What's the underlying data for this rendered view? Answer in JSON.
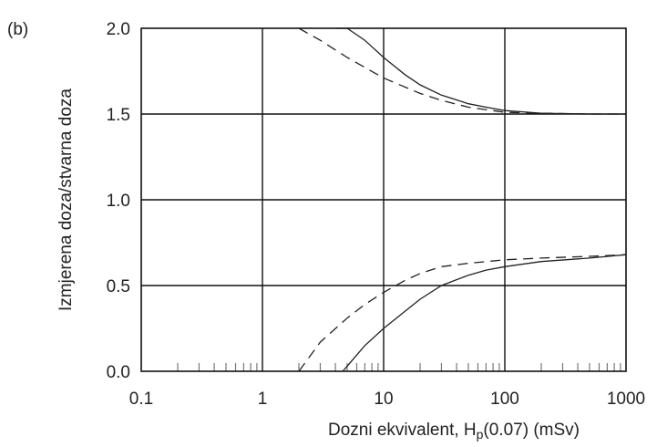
{
  "panel_label": "(b)",
  "chart_data": {
    "type": "line",
    "title": "",
    "xlabel_main": "Dozni ekvivalent, H",
    "xlabel_sub": "p",
    "xlabel_tail": "(0.07) (mSv)",
    "ylabel": "Izmjerena doza/stvarna doza",
    "x_scale": "log",
    "xlim": [
      0.1,
      1000
    ],
    "ylim": [
      0.0,
      2.0
    ],
    "x_ticks": [
      0.1,
      1,
      10,
      100,
      1000
    ],
    "x_tick_labels": [
      "0.1",
      "1",
      "10",
      "100",
      "1000"
    ],
    "y_ticks": [
      0.0,
      0.5,
      1.0,
      1.5,
      2.0
    ],
    "y_tick_labels": [
      "0.0",
      "0.5",
      "1.0",
      "1.5",
      "2.0"
    ],
    "grid": true,
    "series": [
      {
        "style": "solid",
        "color": "#222222",
        "x": [
          4.0,
          5,
          7,
          10,
          15,
          20,
          30,
          50,
          70,
          100,
          200,
          500,
          1000
        ],
        "y": [
          2.0,
          2.0,
          1.93,
          1.83,
          1.73,
          1.67,
          1.61,
          1.56,
          1.54,
          1.52,
          1.505,
          1.5,
          1.5
        ]
      },
      {
        "style": "dashed",
        "color": "#222222",
        "x": [
          2.0,
          3,
          5,
          10,
          20,
          30,
          50,
          100,
          200,
          500,
          1000
        ],
        "y": [
          2.0,
          1.93,
          1.83,
          1.71,
          1.62,
          1.58,
          1.54,
          1.51,
          1.505,
          1.5,
          1.5
        ]
      },
      {
        "style": "solid",
        "color": "#222222",
        "x": [
          4.6,
          5,
          7,
          10,
          15,
          20,
          30,
          50,
          70,
          100,
          200,
          500,
          1000
        ],
        "y": [
          0.0,
          0.03,
          0.15,
          0.25,
          0.35,
          0.42,
          0.5,
          0.56,
          0.59,
          0.61,
          0.64,
          0.66,
          0.68
        ]
      },
      {
        "style": "dashed",
        "color": "#222222",
        "x": [
          2.0,
          3,
          5,
          7,
          10,
          15,
          20,
          30,
          50,
          100,
          200,
          500,
          1000
        ],
        "y": [
          0.0,
          0.17,
          0.31,
          0.39,
          0.46,
          0.53,
          0.57,
          0.61,
          0.63,
          0.65,
          0.66,
          0.67,
          0.68
        ]
      }
    ]
  }
}
